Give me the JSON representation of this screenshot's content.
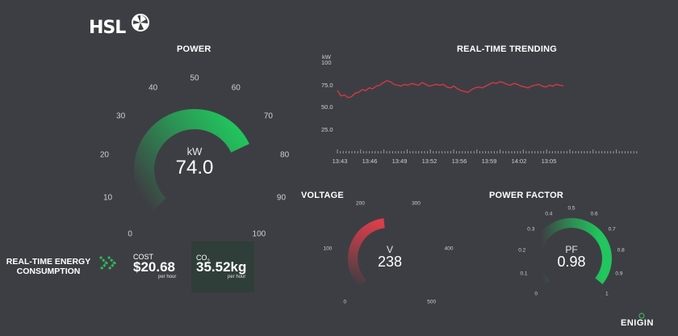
{
  "brand": {
    "logo_text": "HSL",
    "logo_icon": "fan-icon",
    "footer_logo": "ENIGIN",
    "footer_mark": "leaf-icon"
  },
  "colors": {
    "background": "#3d3e43",
    "gauge_green": "#22c55e",
    "gauge_red": "#e53e4b",
    "trend_line": "#d13a48",
    "co2_box": "#2f3e38",
    "chevron": "#2fb85a"
  },
  "power": {
    "title": "POWER",
    "unit": "kW",
    "value": "74.0",
    "ticks": [
      "0",
      "10",
      "20",
      "30",
      "40",
      "50",
      "60",
      "70",
      "80",
      "90",
      "100"
    ],
    "min": 0,
    "max": 100,
    "current": 74.0
  },
  "trend": {
    "title": "REAL-TIME TRENDING",
    "unit": "kW",
    "y_ticks": [
      "100",
      "75.0",
      "50.0",
      "25.0"
    ],
    "x_ticks": [
      "13:43",
      "13:46",
      "13:49",
      "13:52",
      "13:56",
      "13:59",
      "14:02",
      "13:05"
    ]
  },
  "chart_data": {
    "type": "line",
    "title": "REAL-TIME TRENDING",
    "ylabel": "kW",
    "xlabel": "",
    "ylim": [
      0,
      100
    ],
    "x_ticks": [
      "13:43",
      "13:46",
      "13:49",
      "13:52",
      "13:56",
      "13:59",
      "14:02",
      "13:05"
    ],
    "series": [
      {
        "values": [
          69,
          63,
          64,
          61,
          62,
          66,
          67,
          70,
          69,
          72,
          71,
          74,
          75,
          78,
          80,
          79,
          76,
          75,
          74,
          76,
          75,
          77,
          76,
          75,
          78,
          76,
          74,
          75,
          76,
          75,
          76,
          73,
          72,
          74,
          71,
          69,
          68,
          67,
          70,
          72,
          73,
          72,
          74,
          76,
          78,
          77,
          79,
          78,
          76,
          75,
          77,
          76,
          74,
          73,
          72,
          74,
          75,
          76,
          74,
          73,
          75,
          74,
          76,
          75,
          74
        ]
      }
    ]
  },
  "voltage": {
    "title": "VOLTAGE",
    "unit": "V",
    "value": "238",
    "ticks": [
      "0",
      "100",
      "200",
      "300",
      "400",
      "500"
    ],
    "min": 0,
    "max": 500,
    "current": 238
  },
  "power_factor": {
    "title": "POWER FACTOR",
    "unit": "PF",
    "value": "0.98",
    "ticks": [
      "0",
      "0.1",
      "0.2",
      "0.3",
      "0.4",
      "0.5",
      "0.6",
      "0.7",
      "0.8",
      "0.9",
      "1"
    ],
    "min": 0,
    "max": 1,
    "current": 0.98
  },
  "energy": {
    "title": "REAL-TIME ENERGY CONSUMPTION",
    "cost_label": "COST",
    "cost_value": "$20.68",
    "cost_unit": "per hour",
    "co2_label": "CO",
    "co2_sub": "2",
    "co2_value": "35.52kg",
    "co2_unit": "per hour"
  }
}
